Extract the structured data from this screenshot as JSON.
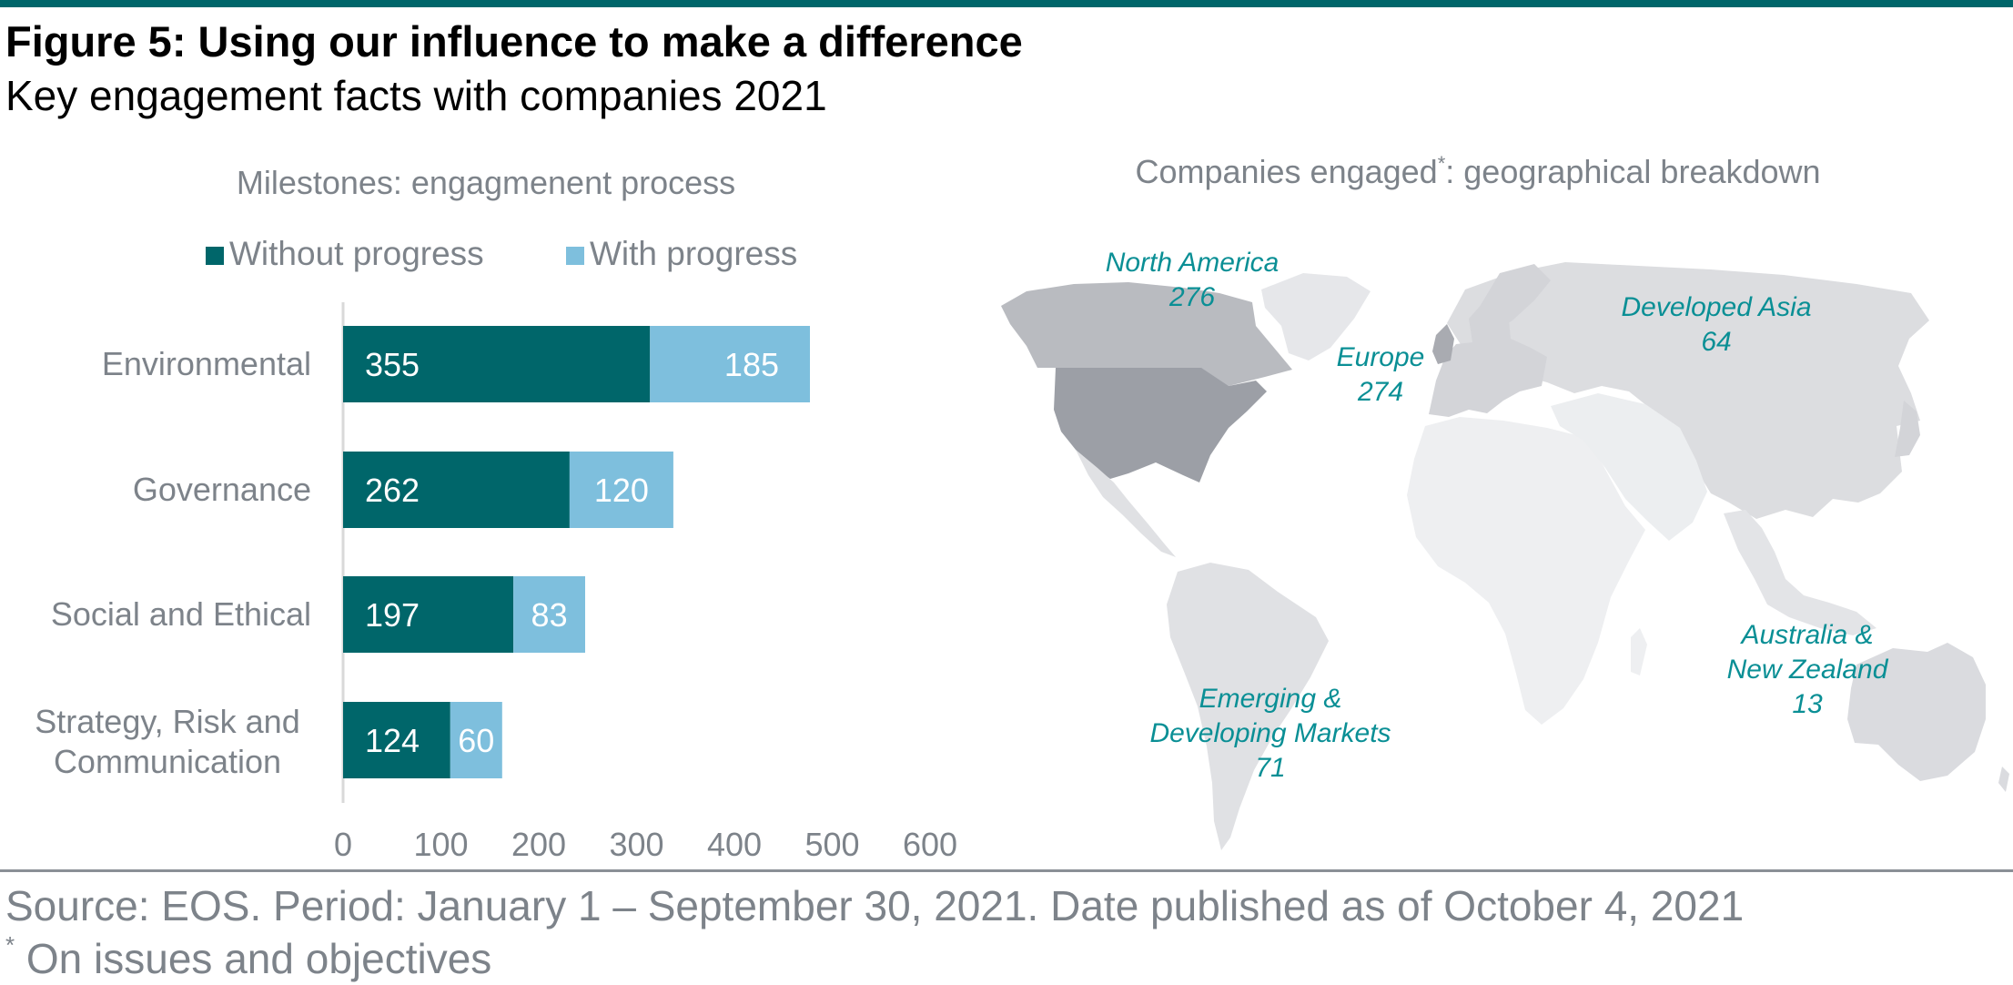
{
  "figure": {
    "title": "Figure 5: Using our influence to make a difference",
    "subtitle": "Key engagement facts with companies 2021"
  },
  "chart_data": [
    {
      "type": "bar",
      "orientation": "horizontal",
      "stacked": true,
      "title": "Milestones: engagmenent process",
      "categories": [
        "Environmental",
        "Governance",
        "Social and Ethical",
        "Strategy, Risk and Communication"
      ],
      "series": [
        {
          "name": "Without progress",
          "values": [
            355,
            262,
            197,
            124
          ],
          "color": "#00666a"
        },
        {
          "name": "With progress",
          "values": [
            185,
            120,
            83,
            60
          ],
          "color": "#7ebfdd"
        }
      ],
      "xlim": [
        0,
        600
      ],
      "xticks": [
        0,
        100,
        200,
        300,
        400,
        500,
        600
      ],
      "legend_position": "top",
      "grid": false
    }
  ],
  "map": {
    "title_main": "Companies engaged",
    "title_mark": "*",
    "title_rest": ": geographical breakdown",
    "regions": [
      {
        "id": "north-america",
        "label": "North America",
        "value": "276"
      },
      {
        "id": "europe",
        "label": "Europe",
        "value": "274"
      },
      {
        "id": "developed-asia",
        "label": "Developed Asia",
        "value": "64"
      },
      {
        "id": "australia-nz",
        "label_line1": "Australia &",
        "label_line2": "New Zealand",
        "value": "13"
      },
      {
        "id": "emerging",
        "label_line1": "Emerging &",
        "label_line2": "Developing Markets",
        "value": "71"
      }
    ],
    "label_color": "#0a8f95"
  },
  "footer": {
    "source": "Source: EOS. Period: January 1 – September 30, 2021. Date published as of October 4, 2021",
    "footnote_mark": "*",
    "footnote_text": " On issues and objectives"
  }
}
